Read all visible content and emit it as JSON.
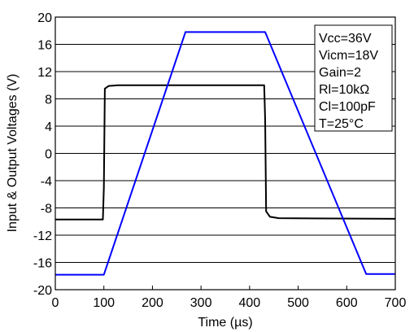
{
  "chart_data": {
    "type": "line",
    "title": "",
    "xlabel": "Time (µs)",
    "ylabel": "Input & Output Voltages (V)",
    "xlim": [
      0,
      700
    ],
    "ylim": [
      -20,
      20
    ],
    "xticks": [
      0,
      100,
      200,
      300,
      400,
      500,
      600,
      700
    ],
    "yticks": [
      -20,
      -16,
      -12,
      -8,
      -4,
      0,
      4,
      8,
      12,
      16,
      20
    ],
    "xtick_labels": [
      "0",
      "100",
      "200",
      "300",
      "400",
      "500",
      "600",
      "700"
    ],
    "ytick_labels": [
      "-20",
      "-16",
      "-12",
      "-8",
      "-4",
      "0",
      "4",
      "8",
      "12",
      "16",
      "20"
    ],
    "grid": "horizontal",
    "series": [
      {
        "color": "#000000",
        "x": [
          0,
          98,
          100,
          102,
          110,
          130,
          430,
          432,
          434,
          442,
          460,
          700
        ],
        "y": [
          -9.7,
          -9.7,
          -5,
          9.5,
          9.9,
          10.0,
          10.0,
          5,
          -8.5,
          -9.3,
          -9.5,
          -9.6
        ]
      },
      {
        "color": "#0000ff",
        "x": [
          0,
          100,
          268,
          432,
          640,
          700
        ],
        "y": [
          -17.8,
          -17.8,
          17.8,
          17.8,
          -17.7,
          -17.7
        ]
      }
    ],
    "annotations": [
      "Vcc=36V",
      "Vicm=18V",
      "Gain=2",
      "Rl=10kΩ",
      "Cl=100pF",
      "T=25°C"
    ],
    "annotation_position": "top-right"
  }
}
